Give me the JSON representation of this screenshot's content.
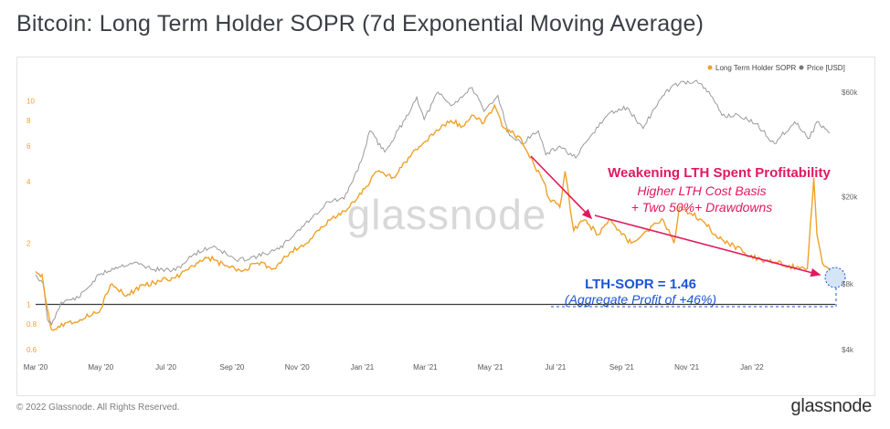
{
  "header": {
    "title": "Bitcoin: Long Term Holder SOPR (7d Exponential Moving Average)"
  },
  "footer": {
    "copyright": "© 2022 Glassnode. All Rights Reserved.",
    "logo": "glassnode"
  },
  "watermark": "glassnode",
  "colors": {
    "sopr": "#f0a128",
    "price": "#9a9a9a",
    "annotation_pink": "#e0195f",
    "annotation_blue": "#1c55d6",
    "baseline": "#3b3b3b"
  },
  "chart_data": {
    "type": "line",
    "title": "Bitcoin: Long Term Holder SOPR (7d Exponential Moving Average)",
    "legend": {
      "position": "top-right",
      "entries": [
        "Long Term Holder SOPR",
        "Price [USD]"
      ]
    },
    "x_ticks": [
      "Mar '20",
      "May '20",
      "Jul '20",
      "Sep '20",
      "Nov '20",
      "Jan '21",
      "Mar '21",
      "May '21",
      "Jul '21",
      "Sep '21",
      "Nov '21",
      "Jan '22"
    ],
    "x_range": [
      "2020-03-01",
      "2022-03-20"
    ],
    "y_left": {
      "scale": "log",
      "range": [
        0.6,
        13
      ],
      "ticks": [
        "0.6",
        "0.8",
        "1",
        "2",
        "4",
        "6",
        "8",
        "10"
      ],
      "reference_line": 1
    },
    "y_right": {
      "scale": "log",
      "range": [
        4000,
        70000
      ],
      "ticks": [
        "$4k",
        "$8k",
        "$20k",
        "$60k"
      ]
    },
    "series": [
      {
        "name": "Long Term Holder SOPR",
        "axis": "left",
        "points": [
          [
            "2020-03-01",
            1.45
          ],
          [
            "2020-03-07",
            1.4
          ],
          [
            "2020-03-12",
            0.95
          ],
          [
            "2020-03-16",
            0.75
          ],
          [
            "2020-03-22",
            0.78
          ],
          [
            "2020-04-01",
            0.82
          ],
          [
            "2020-04-15",
            0.85
          ],
          [
            "2020-05-01",
            0.95
          ],
          [
            "2020-05-10",
            1.25
          ],
          [
            "2020-05-25",
            1.1
          ],
          [
            "2020-06-10",
            1.25
          ],
          [
            "2020-06-25",
            1.3
          ],
          [
            "2020-07-10",
            1.35
          ],
          [
            "2020-07-25",
            1.55
          ],
          [
            "2020-08-10",
            1.7
          ],
          [
            "2020-08-25",
            1.55
          ],
          [
            "2020-09-10",
            1.45
          ],
          [
            "2020-09-25",
            1.6
          ],
          [
            "2020-10-10",
            1.5
          ],
          [
            "2020-10-25",
            1.8
          ],
          [
            "2020-11-10",
            2.0
          ],
          [
            "2020-11-25",
            2.4
          ],
          [
            "2020-12-10",
            2.8
          ],
          [
            "2020-12-20",
            3.0
          ],
          [
            "2021-01-05",
            3.8
          ],
          [
            "2021-01-15",
            4.5
          ],
          [
            "2021-01-30",
            4.2
          ],
          [
            "2021-02-10",
            5.0
          ],
          [
            "2021-02-25",
            6.0
          ],
          [
            "2021-03-10",
            7.0
          ],
          [
            "2021-03-25",
            8.0
          ],
          [
            "2021-04-05",
            7.5
          ],
          [
            "2021-04-15",
            8.5
          ],
          [
            "2021-04-25",
            7.8
          ],
          [
            "2021-05-05",
            9.5
          ],
          [
            "2021-05-12",
            7.5
          ],
          [
            "2021-05-20",
            7.0
          ],
          [
            "2021-05-30",
            6.5
          ],
          [
            "2021-06-10",
            5.0
          ],
          [
            "2021-06-20",
            4.0
          ],
          [
            "2021-06-25",
            3.3
          ],
          [
            "2021-07-05",
            3.0
          ],
          [
            "2021-07-10",
            4.5
          ],
          [
            "2021-07-18",
            2.3
          ],
          [
            "2021-07-28",
            2.6
          ],
          [
            "2021-08-10",
            2.2
          ],
          [
            "2021-08-20",
            2.6
          ],
          [
            "2021-09-01",
            2.2
          ],
          [
            "2021-09-10",
            2.0
          ],
          [
            "2021-09-25",
            2.3
          ],
          [
            "2021-10-10",
            2.6
          ],
          [
            "2021-10-20",
            2.0
          ],
          [
            "2021-10-25",
            3.0
          ],
          [
            "2021-11-05",
            2.8
          ],
          [
            "2021-11-15",
            2.6
          ],
          [
            "2021-11-28",
            2.2
          ],
          [
            "2021-12-10",
            2.0
          ],
          [
            "2021-12-25",
            1.8
          ],
          [
            "2022-01-10",
            1.65
          ],
          [
            "2022-01-25",
            1.6
          ],
          [
            "2022-02-05",
            1.55
          ],
          [
            "2022-02-15",
            1.5
          ],
          [
            "2022-02-22",
            1.5
          ],
          [
            "2022-02-28",
            4.2
          ],
          [
            "2022-03-03",
            2.2
          ],
          [
            "2022-03-08",
            1.6
          ],
          [
            "2022-03-15",
            1.46
          ]
        ]
      },
      {
        "name": "Price [USD]",
        "axis": "right",
        "points": [
          [
            "2020-03-01",
            8800
          ],
          [
            "2020-03-08",
            8000
          ],
          [
            "2020-03-12",
            5500
          ],
          [
            "2020-03-16",
            5200
          ],
          [
            "2020-03-25",
            6600
          ],
          [
            "2020-04-10",
            6900
          ],
          [
            "2020-04-30",
            8800
          ],
          [
            "2020-05-15",
            9500
          ],
          [
            "2020-06-01",
            10000
          ],
          [
            "2020-06-20",
            9300
          ],
          [
            "2020-07-10",
            9200
          ],
          [
            "2020-07-28",
            11000
          ],
          [
            "2020-08-15",
            11900
          ],
          [
            "2020-09-05",
            10200
          ],
          [
            "2020-09-25",
            10700
          ],
          [
            "2020-10-15",
            11500
          ],
          [
            "2020-10-30",
            13600
          ],
          [
            "2020-11-15",
            16000
          ],
          [
            "2020-11-30",
            19000
          ],
          [
            "2020-12-15",
            19500
          ],
          [
            "2020-12-31",
            29000
          ],
          [
            "2021-01-08",
            40000
          ],
          [
            "2021-01-22",
            32000
          ],
          [
            "2021-02-10",
            45000
          ],
          [
            "2021-02-21",
            57000
          ],
          [
            "2021-02-28",
            45000
          ],
          [
            "2021-03-13",
            60000
          ],
          [
            "2021-03-25",
            52000
          ],
          [
            "2021-04-14",
            63000
          ],
          [
            "2021-04-25",
            49000
          ],
          [
            "2021-05-08",
            58000
          ],
          [
            "2021-05-19",
            38000
          ],
          [
            "2021-05-30",
            35000
          ],
          [
            "2021-06-15",
            40000
          ],
          [
            "2021-06-22",
            31000
          ],
          [
            "2021-07-05",
            34000
          ],
          [
            "2021-07-20",
            30000
          ],
          [
            "2021-08-05",
            39000
          ],
          [
            "2021-08-20",
            48000
          ],
          [
            "2021-09-06",
            51000
          ],
          [
            "2021-09-21",
            41000
          ],
          [
            "2021-10-06",
            55000
          ],
          [
            "2021-10-20",
            65000
          ],
          [
            "2021-11-10",
            68000
          ],
          [
            "2021-11-25",
            57000
          ],
          [
            "2021-12-04",
            47000
          ],
          [
            "2021-12-20",
            47000
          ],
          [
            "2022-01-05",
            43000
          ],
          [
            "2022-01-22",
            35000
          ],
          [
            "2022-02-10",
            44000
          ],
          [
            "2022-02-24",
            37000
          ],
          [
            "2022-03-03",
            44000
          ],
          [
            "2022-03-15",
            39000
          ]
        ]
      }
    ],
    "annotations": [
      {
        "text": "Weakening  LTH Spent Profitability",
        "color": "#e0195f"
      },
      {
        "text": "Higher LTH Cost Basis",
        "color": "#e0195f"
      },
      {
        "text": "+ Two 50%+ Drawdowns",
        "color": "#e0195f"
      },
      {
        "text": "LTH-SOPR = 1.46",
        "color": "#1c55d6"
      },
      {
        "text": "(Aggregate Profit of +46%)",
        "color": "#1c55d6"
      }
    ]
  }
}
